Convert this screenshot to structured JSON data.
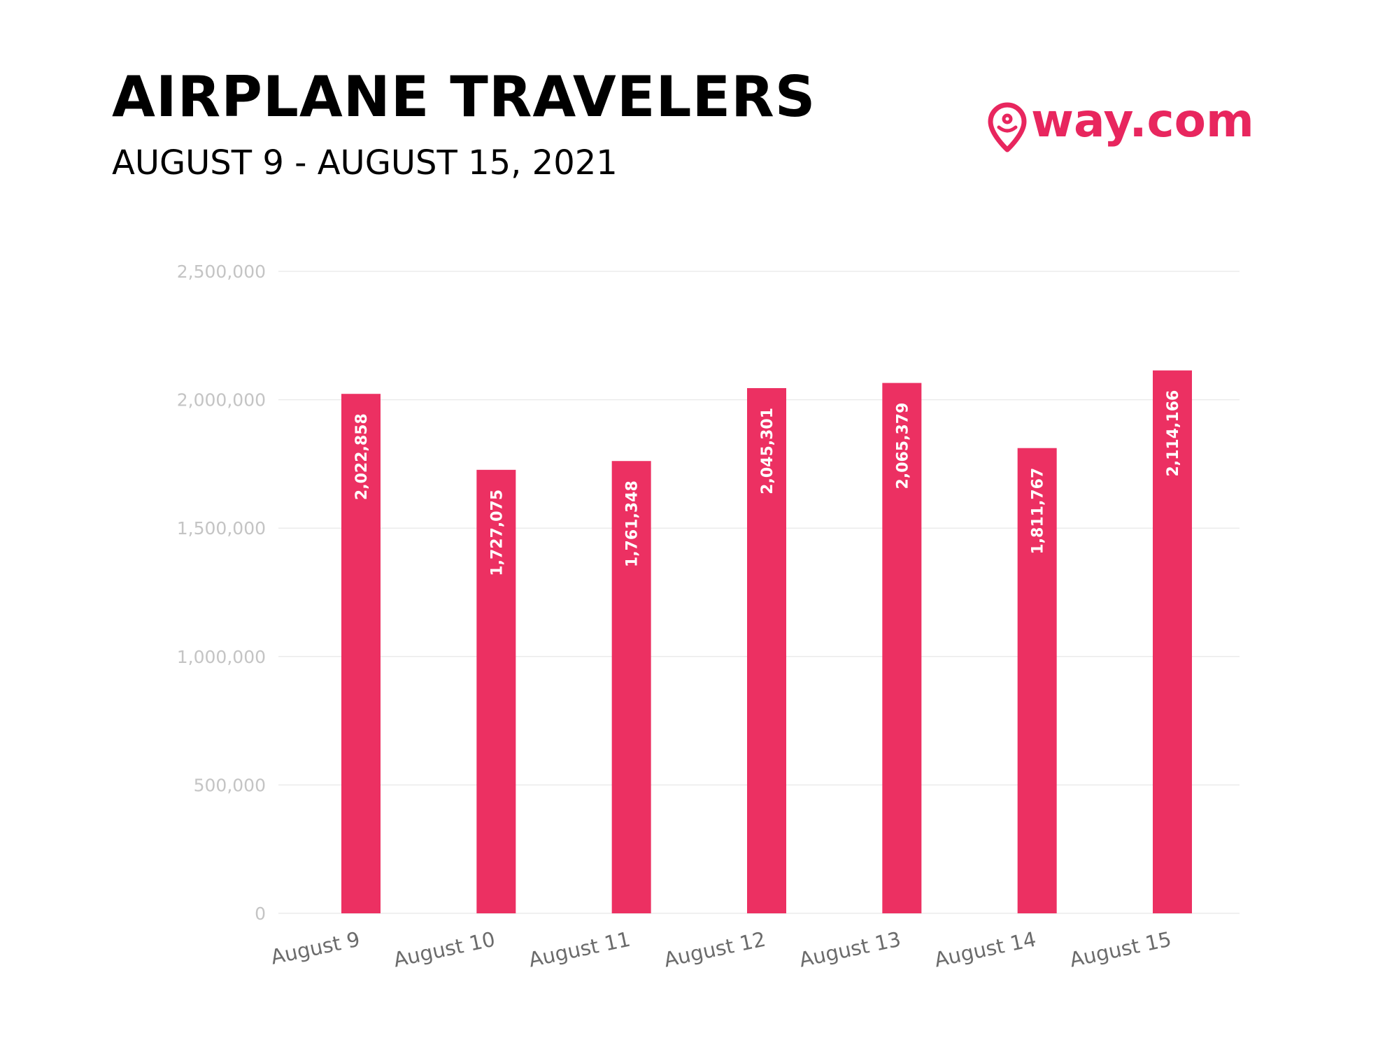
{
  "header": {
    "title": "AIRPLANE TRAVELERS",
    "subtitle": "AUGUST 9 - AUGUST 15, 2021",
    "logo_text": "way.com"
  },
  "colors": {
    "bar": "#EC3062",
    "brand": "#E8265E",
    "gridline": "#EBEBEB",
    "tick_label": "#C4C4C4",
    "category_label": "#6B6B6B",
    "data_label": "#FFFFFF"
  },
  "logo_icon": "location-pin-smiley-icon",
  "chart_data": {
    "type": "bar",
    "categories": [
      "August 9",
      "August 10",
      "August 11",
      "August 12",
      "August 13",
      "August 14",
      "August 15"
    ],
    "values": [
      2022858,
      1727075,
      1761348,
      2045301,
      2065379,
      1811767,
      2114166
    ],
    "value_labels": [
      "2,022,858",
      "1,727,075",
      "1,761,348",
      "2,045,301",
      "2,065,379",
      "1,811,767",
      "2,114,166"
    ],
    "yticks": [
      0,
      500000,
      1000000,
      1500000,
      2000000,
      2500000
    ],
    "ytick_labels": [
      "0",
      "500,000",
      "1,000,000",
      "1,500,000",
      "2,000,000",
      "2,500,000"
    ],
    "ylim": [
      0,
      2500000
    ],
    "grid": true,
    "legend": "none",
    "title": "AIRPLANE TRAVELERS",
    "xlabel": "",
    "ylabel": ""
  }
}
